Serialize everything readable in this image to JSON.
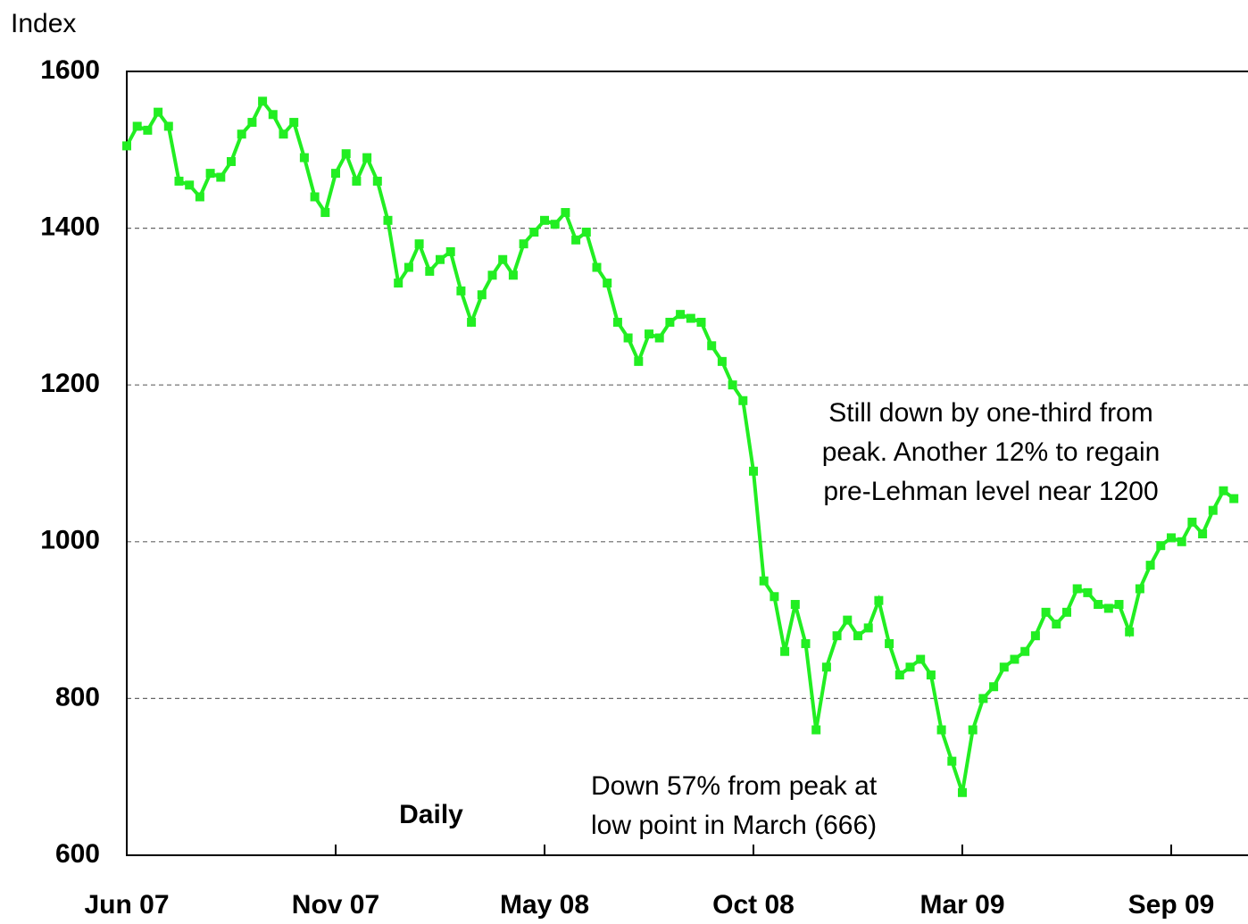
{
  "chart_data": {
    "type": "line",
    "y_label": "Index",
    "annotations": [
      {
        "lines": [
          "Still down by one-third from",
          "peak.  Another 12% to regain",
          "pre-Lehman level near 1200"
        ]
      },
      {
        "lines": [
          "Down 57% from peak at",
          "low point in March (666)"
        ]
      },
      {
        "lines": [
          "Daily"
        ]
      }
    ],
    "categories": [
      "Jun 07",
      null,
      null,
      null,
      null,
      null,
      null,
      null,
      null,
      null,
      null,
      null,
      null,
      null,
      null,
      null,
      null,
      null,
      null,
      null,
      "Nov 07",
      null,
      null,
      null,
      null,
      null,
      null,
      null,
      null,
      null,
      null,
      null,
      null,
      null,
      null,
      null,
      null,
      null,
      null,
      null,
      "May 08",
      null,
      null,
      null,
      null,
      null,
      null,
      null,
      null,
      null,
      null,
      null,
      null,
      null,
      null,
      null,
      null,
      null,
      null,
      null,
      "Oct 08",
      null,
      null,
      null,
      null,
      null,
      null,
      null,
      null,
      null,
      null,
      null,
      null,
      null,
      null,
      null,
      null,
      null,
      null,
      null,
      "Mar 09",
      null,
      null,
      null,
      null,
      null,
      null,
      null,
      null,
      null,
      null,
      null,
      null,
      null,
      null,
      null,
      null,
      null,
      null,
      null,
      "Sep 09",
      null,
      null,
      null,
      null,
      null,
      null
    ],
    "series": [
      {
        "name": "Index",
        "color": "#22ee22",
        "values": [
          1505,
          1530,
          1525,
          1548,
          1530,
          1460,
          1455,
          1440,
          1470,
          1465,
          1485,
          1520,
          1535,
          1562,
          1545,
          1520,
          1535,
          1490,
          1440,
          1420,
          1470,
          1495,
          1460,
          1490,
          1460,
          1410,
          1330,
          1350,
          1380,
          1345,
          1360,
          1370,
          1320,
          1280,
          1315,
          1340,
          1360,
          1340,
          1380,
          1395,
          1410,
          1405,
          1420,
          1385,
          1395,
          1350,
          1330,
          1280,
          1260,
          1230,
          1265,
          1260,
          1280,
          1290,
          1285,
          1280,
          1250,
          1230,
          1200,
          1180,
          1090,
          950,
          930,
          860,
          920,
          870,
          760,
          840,
          880,
          900,
          880,
          890,
          925,
          870,
          830,
          840,
          850,
          830,
          760,
          720,
          680,
          760,
          800,
          815,
          840,
          850,
          860,
          880,
          910,
          895,
          910,
          940,
          935,
          920,
          915,
          920,
          885,
          940,
          970,
          995,
          1005,
          1000,
          1025,
          1010,
          1040,
          1065,
          1055
        ]
      }
    ],
    "ylim": [
      600,
      1600
    ],
    "yticks": [
      600,
      800,
      1000,
      1200,
      1400,
      1600
    ],
    "grid": true
  }
}
